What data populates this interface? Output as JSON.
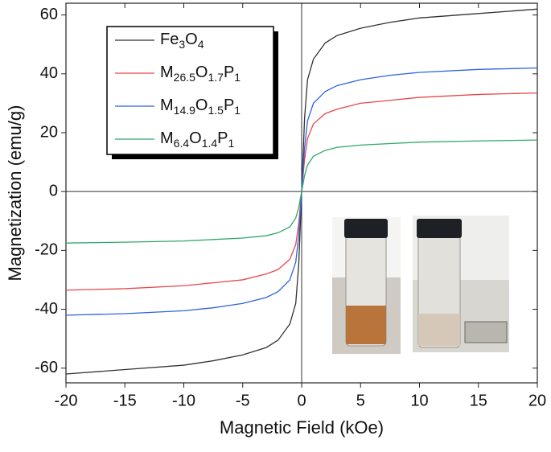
{
  "chart_data": {
    "type": "line",
    "xlabel": "Magnetic Field (kOe)",
    "ylabel": "Magnetization (emu/g)",
    "x": [
      -20,
      -15,
      -10,
      -7.5,
      -5,
      -3,
      -2,
      -1,
      -0.5,
      -0.25,
      0,
      0.25,
      0.5,
      1,
      2,
      3,
      5,
      7.5,
      10,
      15,
      20
    ],
    "series": [
      {
        "name": "Fe3O4",
        "color": "#333333",
        "values": [
          -62,
          -60.5,
          -59,
          -57.5,
          -55.5,
          -53,
          -50.5,
          -45,
          -38,
          -25,
          0,
          25,
          38,
          45,
          50.5,
          53,
          55.5,
          57.5,
          59,
          60.5,
          62
        ]
      },
      {
        "name": "M26.5O1.7P1",
        "color": "#e8474a",
        "values": [
          -33.5,
          -33,
          -32,
          -31,
          -30,
          -28,
          -26.5,
          -23,
          -18,
          -11,
          0,
          11,
          18,
          23,
          26.5,
          28,
          30,
          31,
          32,
          33,
          33.5
        ]
      },
      {
        "name": "M14.9O1.5P1",
        "color": "#2f62e0",
        "values": [
          -42,
          -41.5,
          -40.5,
          -39.5,
          -38,
          -36,
          -34,
          -30,
          -24,
          -15,
          0,
          15,
          24,
          30,
          34,
          36,
          38,
          39.5,
          40.5,
          41.5,
          42
        ]
      },
      {
        "name": "M6.4O1.4P1",
        "color": "#2fa86a",
        "values": [
          -17.5,
          -17.2,
          -16.8,
          -16.3,
          -15.8,
          -15,
          -14,
          -12,
          -9,
          -5.5,
          0,
          5.5,
          9,
          12,
          14,
          15,
          15.8,
          16.3,
          16.8,
          17.2,
          17.5
        ]
      }
    ],
    "xlim": [
      -20,
      20
    ],
    "xticks": [
      -20,
      -15,
      -10,
      -5,
      0,
      5,
      10,
      15,
      20
    ],
    "ylim": [
      -65,
      64
    ],
    "yticks": [
      -60,
      -40,
      -20,
      0,
      20,
      40,
      60
    ]
  }
}
